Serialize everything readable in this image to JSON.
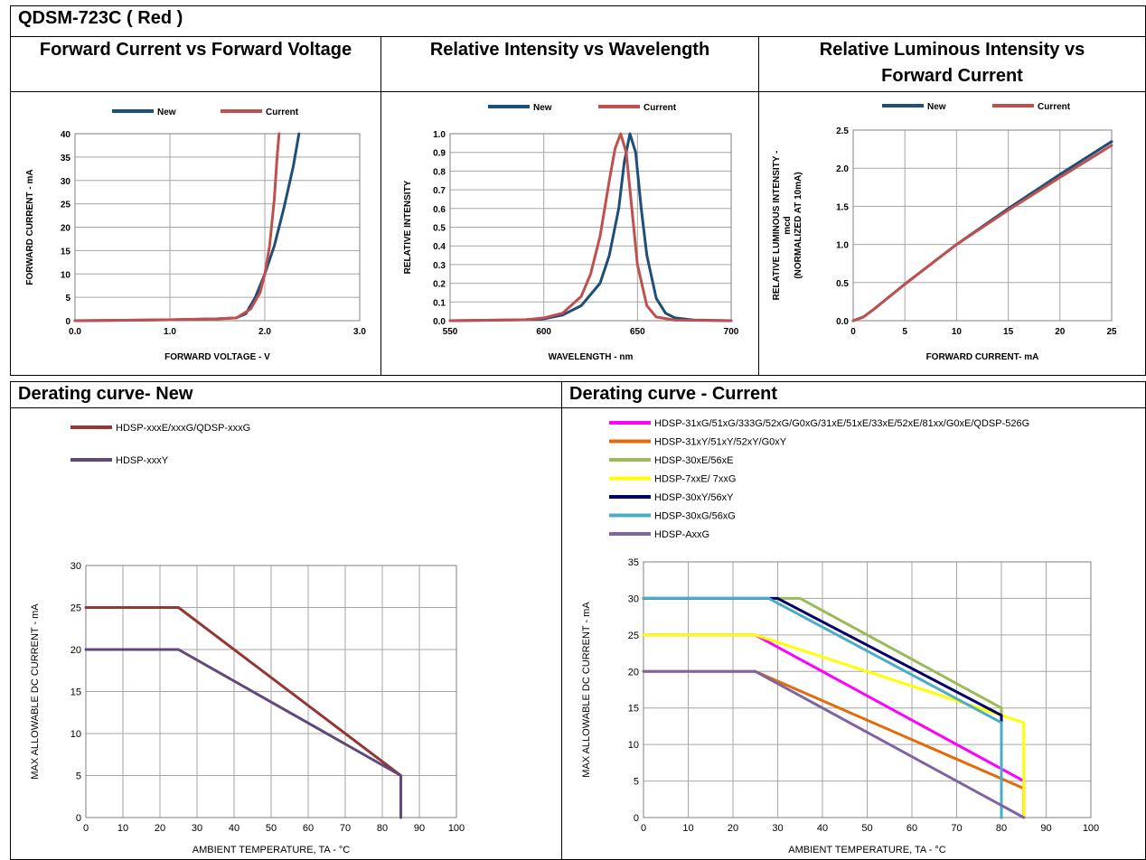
{
  "page": {
    "header": "QDSM-723C ( Red )"
  },
  "colors": {
    "new": "#1f4e79",
    "current": "#c0504d"
  },
  "chart_data": [
    {
      "type": "line",
      "title": "Forward Current vs Forward Voltage",
      "xlabel": "FORWARD VOLTAGE - V",
      "ylabel": "FORWARD CURRENT - mA",
      "xlim": [
        0,
        3
      ],
      "ylim": [
        0,
        40
      ],
      "xticks": [
        "0.0",
        "1.0",
        "2.0",
        "3.0"
      ],
      "yticks": [
        "0",
        "5",
        "10",
        "15",
        "20",
        "25",
        "30",
        "35",
        "40"
      ],
      "xtick_values": [
        0,
        1,
        2,
        3
      ],
      "ytick_values": [
        0,
        5,
        10,
        15,
        20,
        25,
        30,
        35,
        40
      ],
      "grid": true,
      "legend": "top",
      "series": [
        {
          "name": "New",
          "color": "#1f4e79",
          "x": [
            0,
            1.0,
            1.5,
            1.7,
            1.8,
            1.9,
            2.0,
            2.1,
            2.2,
            2.3,
            2.36
          ],
          "y": [
            0,
            0.2,
            0.4,
            0.6,
            1.5,
            5,
            10,
            16,
            24,
            33,
            40
          ]
        },
        {
          "name": "Current",
          "color": "#c0504d",
          "x": [
            0,
            1.0,
            1.5,
            1.7,
            1.85,
            1.95,
            2.0,
            2.05,
            2.1,
            2.13,
            2.15
          ],
          "y": [
            0,
            0.2,
            0.4,
            0.6,
            2.5,
            6,
            10,
            16,
            26,
            35,
            40
          ]
        }
      ]
    },
    {
      "type": "line",
      "title": "Relative Intensity vs Wavelength",
      "xlabel": "WAVELENGTH - nm",
      "ylabel": "RELATIVE INTENSITY",
      "xlim": [
        550,
        700
      ],
      "ylim": [
        0,
        1
      ],
      "xticks": [
        "550",
        "600",
        "650",
        "700"
      ],
      "yticks": [
        "0.0",
        "0.1",
        "0.2",
        "0.3",
        "0.4",
        "0.5",
        "0.6",
        "0.7",
        "0.8",
        "0.9",
        "1.0"
      ],
      "xtick_values": [
        550,
        600,
        650,
        700
      ],
      "ytick_values": [
        0,
        0.1,
        0.2,
        0.3,
        0.4,
        0.5,
        0.6,
        0.7,
        0.8,
        0.9,
        1.0
      ],
      "grid": true,
      "legend": "top",
      "series": [
        {
          "name": "New",
          "color": "#1f4e79",
          "x": [
            550,
            590,
            600,
            610,
            620,
            630,
            635,
            640,
            643,
            646,
            649,
            652,
            655,
            660,
            665,
            670,
            680,
            700
          ],
          "y": [
            0,
            0.005,
            0.01,
            0.03,
            0.08,
            0.2,
            0.35,
            0.6,
            0.85,
            1.0,
            0.9,
            0.6,
            0.35,
            0.12,
            0.04,
            0.015,
            0.004,
            0
          ]
        },
        {
          "name": "Current",
          "color": "#c0504d",
          "x": [
            550,
            590,
            600,
            610,
            620,
            625,
            630,
            635,
            638,
            641,
            644,
            647,
            650,
            655,
            660,
            670,
            700
          ],
          "y": [
            0,
            0.005,
            0.015,
            0.04,
            0.13,
            0.25,
            0.45,
            0.75,
            0.92,
            1.0,
            0.9,
            0.6,
            0.3,
            0.08,
            0.02,
            0.003,
            0
          ]
        }
      ]
    },
    {
      "type": "line",
      "title": "Relative Luminous Intensity vs Forward Current",
      "xlabel": "FORWARD CURRENT- mA",
      "ylabel": "RELATIVE LUMINOUS INTENSITY - mcd (NORMALIZED AT 10mA)",
      "ylabel_lines": [
        "RELATIVE LUMINOUS INTENSITY -",
        "mcd",
        "(NORMALIZED AT 10mA)"
      ],
      "xlim": [
        0,
        25
      ],
      "ylim": [
        0,
        2.5
      ],
      "xticks": [
        "0",
        "5",
        "10",
        "15",
        "20",
        "25"
      ],
      "yticks": [
        "0.0",
        "0.5",
        "1.0",
        "1.5",
        "2.0",
        "2.5"
      ],
      "xtick_values": [
        0,
        5,
        10,
        15,
        20,
        25
      ],
      "ytick_values": [
        0,
        0.5,
        1.0,
        1.5,
        2.0,
        2.5
      ],
      "grid": true,
      "legend": "top",
      "series": [
        {
          "name": "New",
          "color": "#1f4e79",
          "x": [
            0,
            1,
            2,
            5,
            10,
            15,
            20,
            25
          ],
          "y": [
            0,
            0.05,
            0.15,
            0.48,
            1.0,
            1.47,
            1.92,
            2.35
          ]
        },
        {
          "name": "Current",
          "color": "#c0504d",
          "x": [
            0,
            1,
            2,
            5,
            10,
            15,
            20,
            25
          ],
          "y": [
            0,
            0.05,
            0.15,
            0.48,
            1.0,
            1.45,
            1.88,
            2.3
          ]
        }
      ]
    },
    {
      "type": "line",
      "title": "Derating curve- New",
      "xlabel": "AMBIENT TEMPERATURE, TA - °C",
      "ylabel": "MAX ALLOWABLE DC CURRENT - mA",
      "xlim": [
        0,
        100
      ],
      "ylim": [
        0,
        30
      ],
      "xticks": [
        "0",
        "10",
        "20",
        "30",
        "40",
        "50",
        "60",
        "70",
        "80",
        "90",
        "100"
      ],
      "yticks": [
        "0",
        "5",
        "10",
        "15",
        "20",
        "25",
        "30"
      ],
      "xtick_values": [
        0,
        10,
        20,
        30,
        40,
        50,
        60,
        70,
        80,
        90,
        100
      ],
      "ytick_values": [
        0,
        5,
        10,
        15,
        20,
        25,
        30
      ],
      "grid": true,
      "legend": "top-left",
      "series": [
        {
          "name": "HDSP-xxxE/xxxG/QDSP-xxxG",
          "color": "#943634",
          "x": [
            0,
            25,
            85,
            85
          ],
          "y": [
            25,
            25,
            5,
            0
          ]
        },
        {
          "name": "HDSP-xxxY",
          "color": "#60497a",
          "x": [
            0,
            25,
            85,
            85
          ],
          "y": [
            20,
            20,
            5,
            0
          ]
        }
      ]
    },
    {
      "type": "line",
      "title": "Derating curve - Current",
      "xlabel": "AMBIENT TEMPERATURE, TA - °C",
      "ylabel": "MAX ALLOWABLE DC CURRENT - mA",
      "xlim": [
        0,
        100
      ],
      "ylim": [
        0,
        35
      ],
      "xticks": [
        "0",
        "10",
        "20",
        "30",
        "40",
        "50",
        "60",
        "70",
        "80",
        "90",
        "100"
      ],
      "yticks": [
        "0",
        "5",
        "10",
        "15",
        "20",
        "25",
        "30",
        "35"
      ],
      "xtick_values": [
        0,
        10,
        20,
        30,
        40,
        50,
        60,
        70,
        80,
        90,
        100
      ],
      "ytick_values": [
        0,
        5,
        10,
        15,
        20,
        25,
        30,
        35
      ],
      "grid": true,
      "legend": "top-left",
      "series": [
        {
          "name": "HDSP-31xG/51xG/333G/52xG/G0xG/31xE/51xE/33xE/52xE/81xx/G0xE/QDSP-526G",
          "color": "#ff00ff",
          "x": [
            0,
            25,
            85,
            85
          ],
          "y": [
            25,
            25,
            5,
            0
          ]
        },
        {
          "name": "HDSP-31xY/51xY/52xY/G0xY",
          "color": "#e36c09",
          "x": [
            0,
            25,
            85,
            85
          ],
          "y": [
            20,
            20,
            4,
            0
          ]
        },
        {
          "name": "HDSP-30xE/56xE",
          "color": "#9bbb59",
          "x": [
            0,
            35,
            80,
            80
          ],
          "y": [
            30,
            30,
            15,
            0
          ]
        },
        {
          "name": "HDSP-7xxE/ 7xxG",
          "color": "#ffff00",
          "x": [
            0,
            25,
            85,
            85
          ],
          "y": [
            25,
            25,
            13,
            0
          ]
        },
        {
          "name": "HDSP-30xY/56xY",
          "color": "#000066",
          "x": [
            0,
            30,
            80,
            80
          ],
          "y": [
            30,
            30,
            14,
            0
          ]
        },
        {
          "name": "HDSP-30xG/56xG",
          "color": "#4bacc6",
          "x": [
            0,
            28,
            80,
            80
          ],
          "y": [
            30,
            30,
            13,
            0
          ]
        },
        {
          "name": "HDSP-AxxG",
          "color": "#8064a2",
          "x": [
            0,
            25,
            85
          ],
          "y": [
            20,
            20,
            0
          ]
        }
      ]
    }
  ]
}
